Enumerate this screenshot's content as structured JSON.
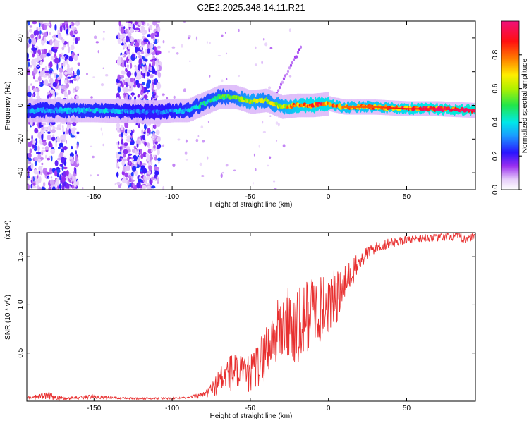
{
  "title": "C2E2.2025.348.14.11.R21",
  "colors": {
    "snr_line": "#e83030",
    "background": "#ffffff"
  },
  "chart_data": [
    {
      "type": "heatmap",
      "name": "spectrogram",
      "xlabel": "Height of straight line (km)",
      "ylabel": "Frequency (Hz)",
      "xlim": [
        -193,
        94
      ],
      "ylim": [
        -50,
        50
      ],
      "xticks": [
        -150,
        -100,
        -50,
        0,
        50
      ],
      "yticks": [
        -40,
        -20,
        0,
        20,
        40
      ],
      "colorbar": {
        "label": "Normalized spectral amplitude",
        "range": [
          0,
          1
        ],
        "ticks": [
          0.0,
          0.2,
          0.4,
          0.6,
          0.8
        ],
        "tick_labels": [
          "0.0",
          "0.2",
          "0.4",
          "0.6",
          "0.8"
        ],
        "colormap": "rainbow (white-violet-blue-cyan-green-yellow-red-magenta)"
      },
      "ridge": {
        "x": [
          -193,
          -150,
          -110,
          -100,
          -90,
          -80,
          -70,
          -60,
          -50,
          -40,
          -30,
          -20,
          -10,
          0,
          10,
          30,
          50,
          70,
          94
        ],
        "freq": [
          -3,
          -3,
          -4,
          -3,
          -3,
          1,
          5,
          5,
          2,
          3,
          -1,
          0,
          0,
          1,
          -1,
          -1,
          -2,
          -2,
          -3
        ],
        "amplitude": [
          0.35,
          0.4,
          0.3,
          0.35,
          0.4,
          0.45,
          0.5,
          0.55,
          0.7,
          0.6,
          0.7,
          0.85,
          0.9,
          0.9,
          0.8,
          0.82,
          0.9,
          0.95,
          0.98
        ]
      },
      "noise_bands_x": [
        [
          -193,
          -160
        ],
        [
          -135,
          -108
        ]
      ]
    },
    {
      "type": "line",
      "name": "snr",
      "xlabel": "Height of straight line (km)",
      "ylabel": "SNR (10 * v/v)",
      "scale_label": "(x10⁴)",
      "xlim": [
        -193,
        94
      ],
      "ylim": [
        0,
        1.75
      ],
      "xticks": [
        -150,
        -100,
        -50,
        0,
        50
      ],
      "yticks": [
        0.5,
        1.0,
        1.5
      ],
      "ytick_labels": [
        "0.5",
        "1.0",
        "1.5"
      ],
      "series": [
        {
          "name": "SNR",
          "x": [
            -193,
            -180,
            -170,
            -150,
            -130,
            -110,
            -100,
            -90,
            -80,
            -75,
            -70,
            -65,
            -60,
            -55,
            -50,
            -45,
            -40,
            -35,
            -30,
            -25,
            -20,
            -15,
            -10,
            -5,
            0,
            5,
            10,
            15,
            20,
            25,
            30,
            40,
            50,
            60,
            70,
            80,
            94
          ],
          "values": [
            0.04,
            0.06,
            0.03,
            0.05,
            0.03,
            0.03,
            0.03,
            0.04,
            0.07,
            0.12,
            0.22,
            0.3,
            0.33,
            0.3,
            0.3,
            0.4,
            0.55,
            0.7,
            0.8,
            0.85,
            0.75,
            0.9,
            1.0,
            0.98,
            1.05,
            1.1,
            1.2,
            1.35,
            1.45,
            1.55,
            1.6,
            1.65,
            1.68,
            1.7,
            1.7,
            1.72,
            1.68
          ],
          "noise": [
            0.01,
            0.04,
            0.02,
            0.02,
            0.01,
            0.01,
            0.01,
            0.01,
            0.03,
            0.08,
            0.14,
            0.2,
            0.22,
            0.18,
            0.2,
            0.25,
            0.3,
            0.32,
            0.38,
            0.42,
            0.45,
            0.4,
            0.38,
            0.35,
            0.33,
            0.3,
            0.22,
            0.15,
            0.1,
            0.08,
            0.06,
            0.05,
            0.04,
            0.04,
            0.04,
            0.05,
            0.06
          ]
        }
      ]
    }
  ]
}
